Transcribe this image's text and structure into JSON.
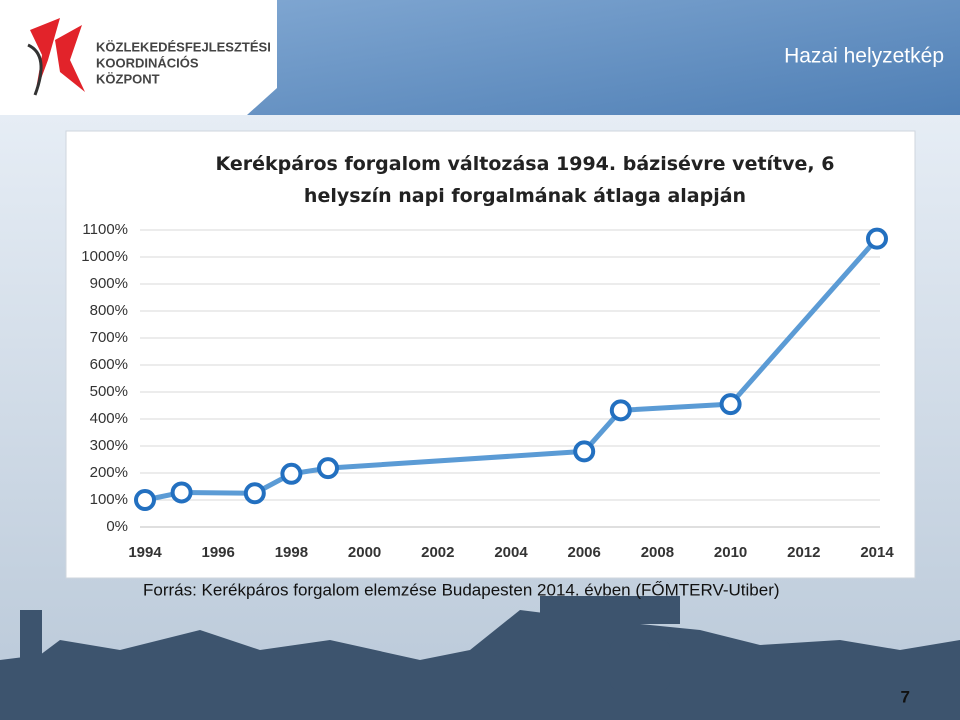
{
  "header": {
    "title": "Hazai helyzetkép",
    "logo_lines": [
      "KÖZLEKEDÉSFEJLESZTÉSI",
      "KOORDINÁCIÓS",
      "KÖZPONT"
    ]
  },
  "chart_data": {
    "type": "line",
    "title": "Kerékpáros forgalom változása 1994. bázisévre vetítve, 6 helyszín napi forgalmának átlaga alapján",
    "x": [
      1994,
      1995,
      1997,
      1998,
      1999,
      2006,
      2007,
      2010,
      2014
    ],
    "values": [
      100,
      128,
      125,
      197,
      218,
      280,
      432,
      455,
      1068
    ],
    "color": "#5b9bd5",
    "marker_color": "#2370c0",
    "xlim": [
      1994,
      2014
    ],
    "xticks": [
      1994,
      1996,
      1998,
      2000,
      2002,
      2004,
      2006,
      2008,
      2010,
      2012,
      2014
    ],
    "ylim": [
      0,
      1100
    ],
    "yticks": [
      {
        "value": 0,
        "label": "0%"
      },
      {
        "value": 100,
        "label": "100%"
      },
      {
        "value": 200,
        "label": "200%"
      },
      {
        "value": 300,
        "label": "300%"
      },
      {
        "value": 400,
        "label": "400%"
      },
      {
        "value": 500,
        "label": "500%"
      },
      {
        "value": 600,
        "label": "600%"
      },
      {
        "value": 700,
        "label": "700%"
      },
      {
        "value": 800,
        "label": "800%"
      },
      {
        "value": 900,
        "label": "900%"
      },
      {
        "value": 1000,
        "label": "1000%"
      },
      {
        "value": 1100,
        "label": "1100%"
      }
    ],
    "grid": true
  },
  "source": "Forrás: Kerékpáros forgalom elemzése Budapesten 2014. évben (FŐMTERV-Utiber)",
  "page_number": 7
}
